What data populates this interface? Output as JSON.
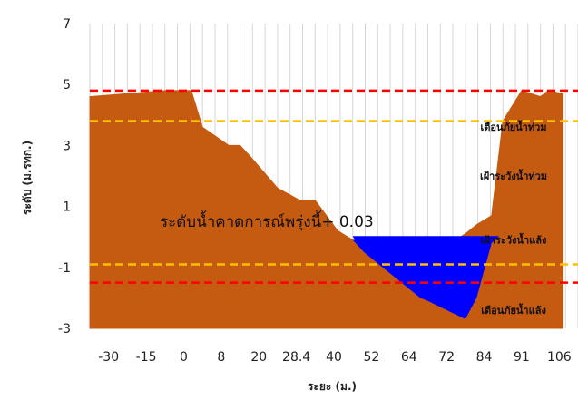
{
  "chart_data": {
    "type": "area",
    "xlabel": "ระยะ (ม.)",
    "ylabel": "ระดับ (ม.รทก.)",
    "ylim": [
      -3,
      7
    ],
    "yticks": [
      7,
      5,
      3,
      1,
      -1,
      -3
    ],
    "grid": "vertical",
    "x_tick_labels": [
      "-30",
      "-15",
      "0",
      "8",
      "20",
      "28.4",
      "40",
      "52",
      "64",
      "72",
      "84",
      "91",
      "106"
    ],
    "cross_section": {
      "x_index": [
        0,
        1,
        2,
        2.7,
        3,
        3.7,
        4,
        4.3,
        5,
        5.6,
        6,
        6.6,
        7,
        7.3,
        8.5,
        8.8,
        9,
        9.5,
        10,
        10.3,
        10.7,
        11,
        11.5,
        12
      ],
      "y": [
        4.6,
        4.7,
        4.8,
        4.8,
        3.6,
        3.0,
        3.0,
        2.6,
        1.6,
        1.2,
        1.2,
        0.2,
        -0.1,
        -0.5,
        -1.7,
        -2.0,
        -2.1,
        -2.4,
        -2.7,
        -2.0,
        -0.2,
        0.1,
        0.5,
        0.7
      ],
      "color": "#c55a11"
    },
    "cross_section_right": {
      "x_index": [
        9.6,
        10,
        10.3,
        10.7,
        11,
        11.5,
        12,
        12.2,
        12.6
      ],
      "y": [
        -0.2,
        0.1,
        0.4,
        0.7,
        3.8,
        4.8,
        4.6,
        4.8,
        4.7
      ],
      "color": "#c55a11"
    },
    "water": {
      "level": 0.03,
      "color": "#0000ff"
    },
    "thresholds": [
      {
        "y": 4.8,
        "color": "#ff0000",
        "label": ""
      },
      {
        "y": 3.8,
        "color": "#ffc000",
        "label": ""
      },
      {
        "y": -0.9,
        "color": "#ffc000",
        "label": ""
      },
      {
        "y": -1.5,
        "color": "#ff0000",
        "label": ""
      }
    ],
    "zone_labels": [
      {
        "text": "เตือนภัยน้ำท่วม",
        "y": 3.6
      },
      {
        "text": "เฝ้าระวังน้ำท่วม",
        "y": 2.0
      },
      {
        "text": "เฝ้าระวังน้ำแล้ง",
        "y": -0.1
      },
      {
        "text": "เตือนภัยน้ำแล้ง",
        "y": -2.4
      }
    ],
    "forecast_label": "ระดับน้ำคาดการณ์พรุ่งนี้+  0.03"
  }
}
